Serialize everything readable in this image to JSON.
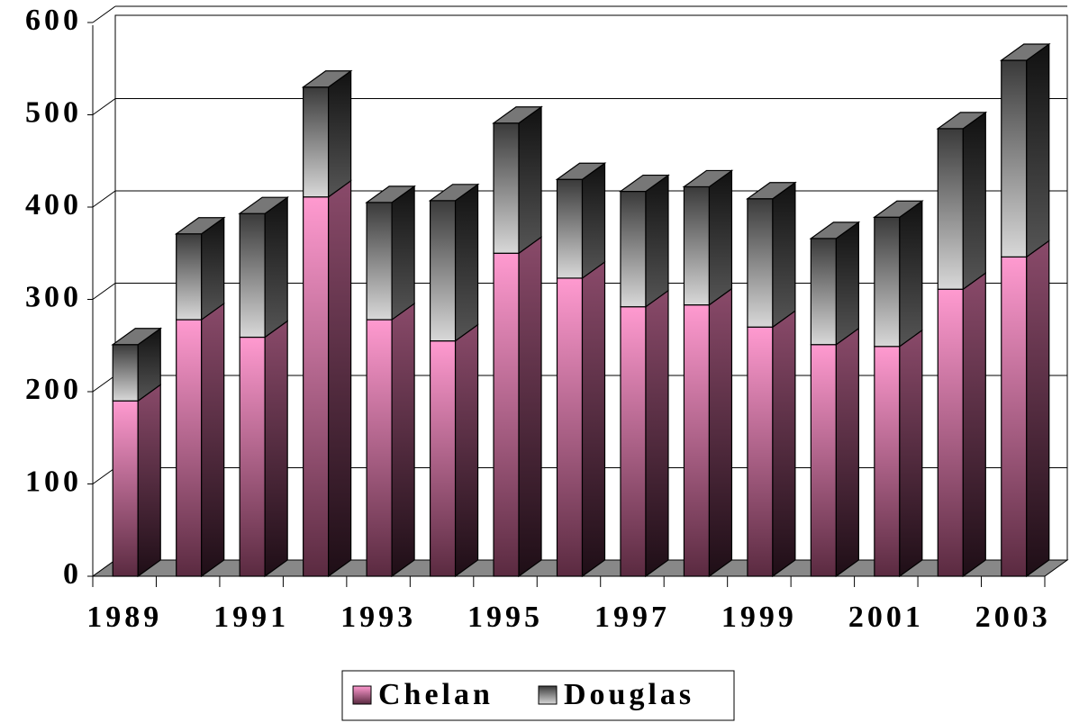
{
  "chart_data": {
    "type": "bar3d_stacked",
    "categories": [
      "1989",
      null,
      "1991",
      null,
      "1993",
      null,
      "1995",
      null,
      "1997",
      null,
      "1999",
      null,
      "2001",
      null,
      "2003"
    ],
    "series": [
      {
        "name": "Chelan",
        "color": "#ff99cc",
        "values": [
          190,
          278,
          259,
          411,
          278,
          255,
          350,
          323,
          292,
          294,
          270,
          251,
          249,
          311,
          346
        ]
      },
      {
        "name": "Douglas",
        "color": "#b0b0b0",
        "values": [
          61,
          93,
          134,
          119,
          127,
          152,
          141,
          107,
          125,
          128,
          139,
          115,
          140,
          174,
          213
        ]
      }
    ],
    "ylim": [
      0,
      600
    ],
    "yticks": [
      0,
      100,
      200,
      300,
      400,
      500,
      600
    ],
    "grid": true,
    "legend": "bottom"
  }
}
